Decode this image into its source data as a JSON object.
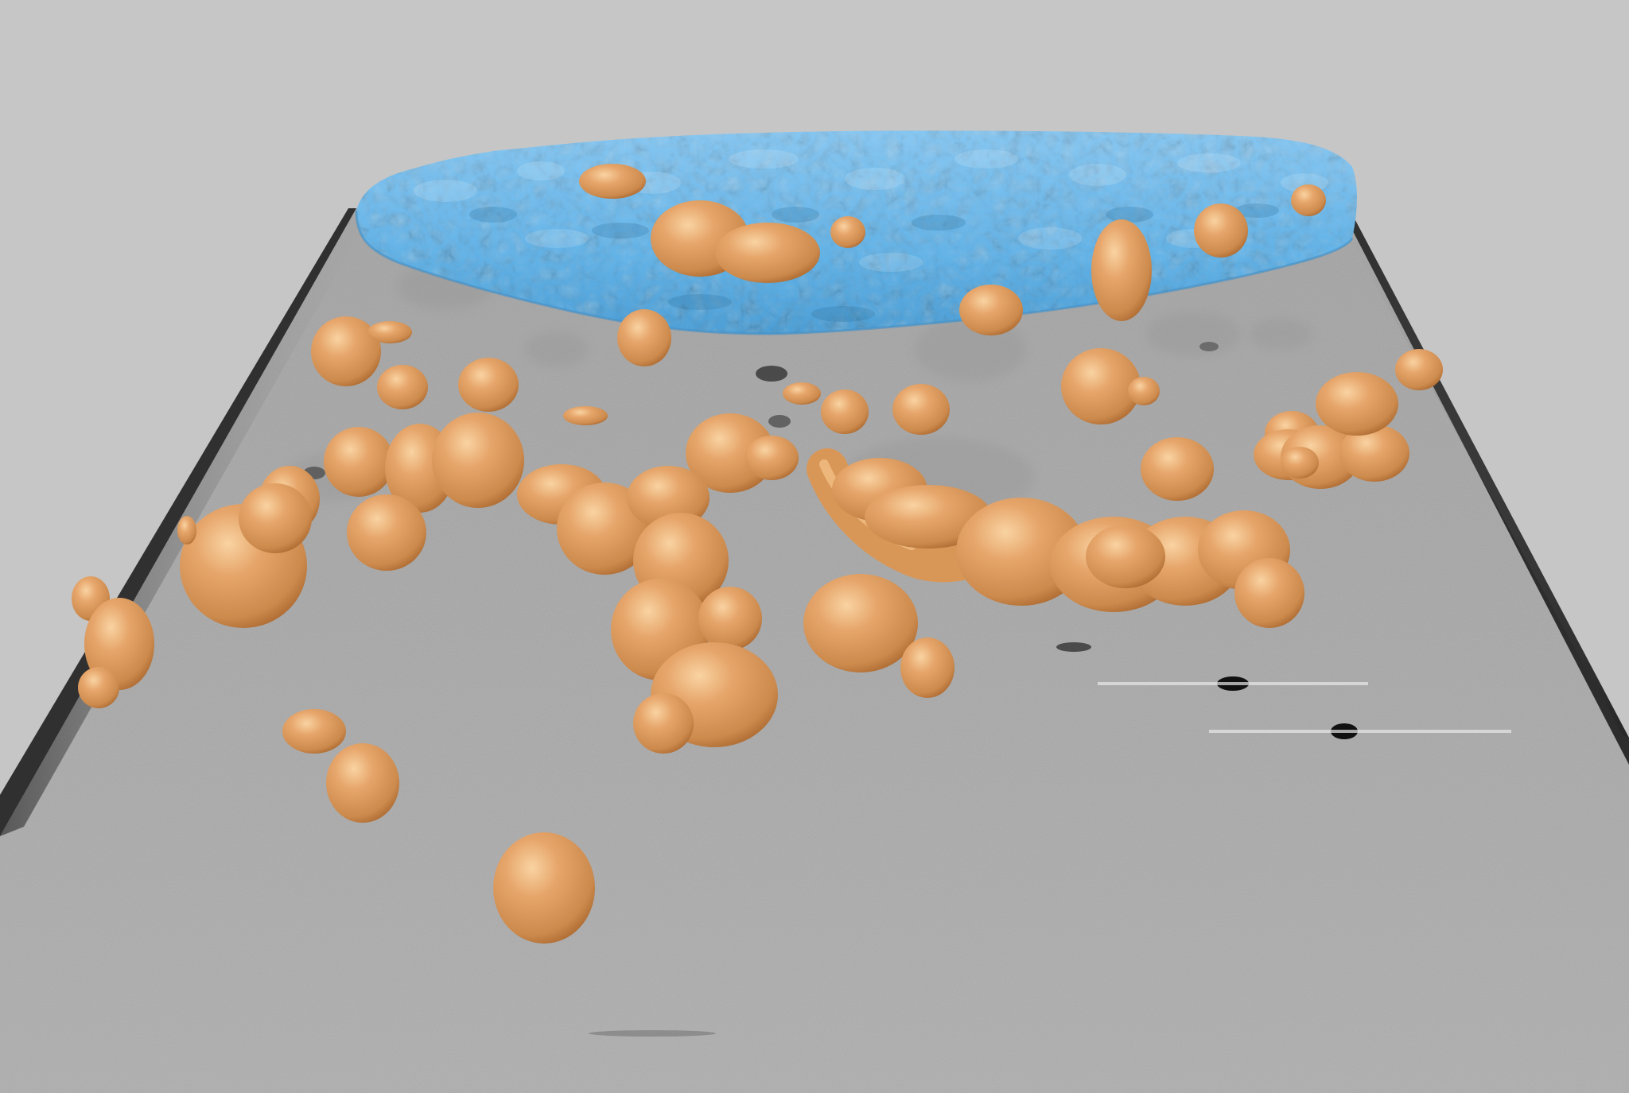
{
  "scene": {
    "background_color": "#c6c6c6",
    "slab_color": "#a9a9a9",
    "membrane_color": "#62b4ea",
    "membrane_highlight": "#8fcdf7",
    "vesicle_color": "#dd9a5a",
    "vesicle_highlight": "#f7cb95",
    "vesicle_shadow": "#a8662e",
    "objects": {
      "membrane": "segmented-membrane-surface",
      "vesicles": "segmented-vesicles",
      "slice": "tomogram-slice"
    }
  }
}
